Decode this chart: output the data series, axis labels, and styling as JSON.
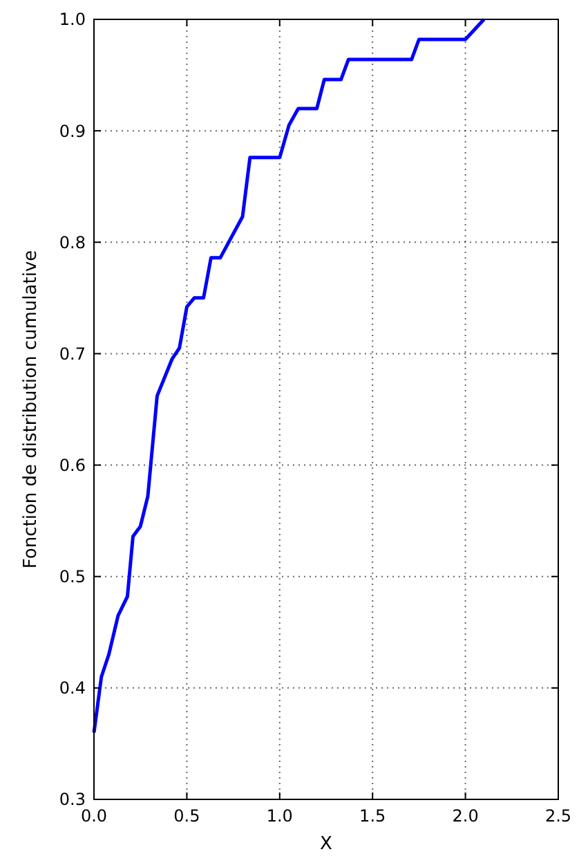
{
  "chart_data": {
    "type": "line",
    "xlabel": "X",
    "ylabel": "Fonction de distribution cumulative",
    "x": [
      0.0,
      0.04,
      0.08,
      0.13,
      0.18,
      0.21,
      0.25,
      0.29,
      0.34,
      0.42,
      0.46,
      0.5,
      0.54,
      0.59,
      0.63,
      0.68,
      0.8,
      0.84,
      1.0,
      1.05,
      1.1,
      1.2,
      1.24,
      1.33,
      1.37,
      1.71,
      1.75,
      2.0,
      2.1
    ],
    "series": [
      {
        "color": "#0000ff",
        "values": [
          0.36,
          0.41,
          0.43,
          0.465,
          0.482,
          0.536,
          0.545,
          0.572,
          0.662,
          0.695,
          0.705,
          0.742,
          0.75,
          0.75,
          0.786,
          0.786,
          0.823,
          0.876,
          0.876,
          0.905,
          0.92,
          0.92,
          0.946,
          0.946,
          0.964,
          0.964,
          0.982,
          0.982,
          1.0
        ]
      }
    ],
    "xlim": [
      0,
      2.5
    ],
    "ylim": [
      0.3,
      1.0
    ],
    "xticks": [
      {
        "value": 0,
        "label": "0.0"
      },
      0.5,
      {
        "value": 1,
        "label": "1.0"
      },
      1.5,
      {
        "value": 2,
        "label": "2.0"
      },
      2.5
    ],
    "yticks": [
      0.3,
      0.4,
      0.5,
      0.6,
      0.7,
      0.8,
      0.9,
      {
        "value": 1,
        "label": "1.0"
      }
    ],
    "grid": true,
    "line_style": "solid",
    "marker": "none"
  }
}
